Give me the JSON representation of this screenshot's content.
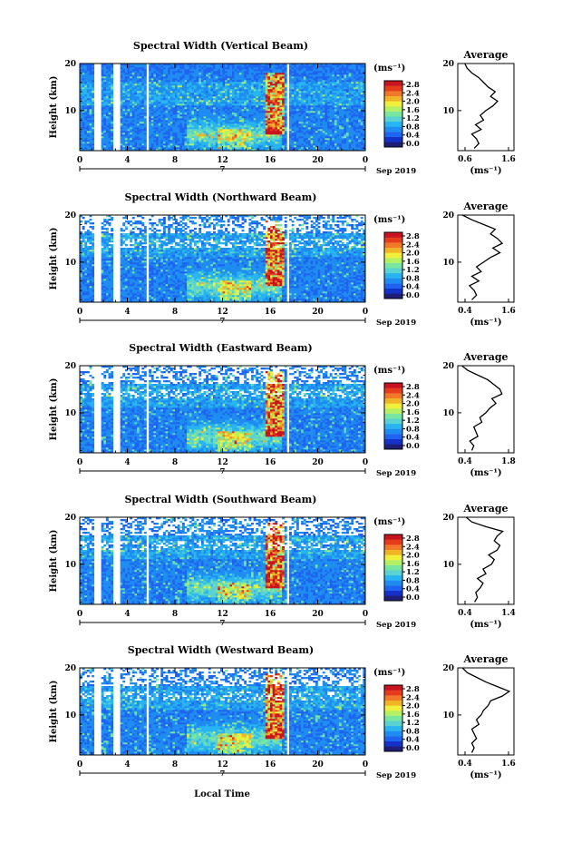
{
  "figure": {
    "xlabel": "Local Time",
    "date_label": "Sep 2019",
    "date_day": "7",
    "unit_label": "(ms⁻¹)",
    "average_title": "Average",
    "average_unit": "(ms⁻¹)"
  },
  "colorbar": {
    "ticks": [
      "0.0",
      "0.4",
      "0.8",
      "1.2",
      "1.6",
      "2.0",
      "2.4",
      "2.8"
    ],
    "colors": [
      "#1e1e78",
      "#1432c8",
      "#1e64f0",
      "#1e8cf0",
      "#28b4f0",
      "#5ad2d2",
      "#78e6a0",
      "#b4f064",
      "#f0f03c",
      "#f0b428",
      "#f07828",
      "#e63c1e",
      "#c8141e"
    ]
  },
  "chart_data": [
    {
      "type": "heatmap",
      "title": "Spectral Width (Vertical Beam)",
      "ylabel": "Height (km)",
      "xlim": [
        0,
        24
      ],
      "ylim": [
        1.5,
        20
      ],
      "x_ticks": [
        "0",
        "4",
        "8",
        "12",
        "16",
        "20",
        "0"
      ],
      "y_ticks": [
        "10",
        "20"
      ],
      "colorbar_range": [
        0.0,
        2.8
      ],
      "data_gaps_hours": [
        [
          1.2,
          1.7
        ],
        [
          2.9,
          3.4
        ],
        [
          5.6,
          5.8
        ],
        [
          17.5,
          17.7
        ]
      ],
      "average_profile": {
        "xlabel": "(ms⁻¹)",
        "x_ticks": [
          "0.6",
          "1.6"
        ],
        "xlim": [
          0.4,
          1.6
        ],
        "y_ticks": [
          "10",
          "20"
        ],
        "height": [
          2,
          3,
          4,
          5,
          6,
          7,
          8,
          9,
          10,
          11,
          12,
          13,
          14,
          15,
          16,
          17,
          18,
          19,
          20
        ],
        "width": [
          0.75,
          0.85,
          0.8,
          0.7,
          0.9,
          0.78,
          0.95,
          0.88,
          1.0,
          1.15,
          1.25,
          1.1,
          1.2,
          1.05,
          0.95,
          0.85,
          0.7,
          0.6,
          0.55
        ]
      }
    },
    {
      "type": "heatmap",
      "title": "Spectral Width (Northward Beam)",
      "ylabel": "Height (km)",
      "xlim": [
        0,
        24
      ],
      "ylim": [
        1.5,
        20
      ],
      "x_ticks": [
        "0",
        "4",
        "8",
        "12",
        "16",
        "20",
        "0"
      ],
      "y_ticks": [
        "10",
        "20"
      ],
      "colorbar_range": [
        0.0,
        2.8
      ],
      "data_gaps_hours": [
        [
          1.2,
          1.7
        ],
        [
          2.9,
          3.4
        ],
        [
          5.6,
          5.8
        ],
        [
          17.5,
          17.7
        ]
      ],
      "average_profile": {
        "xlabel": "(ms⁻¹)",
        "x_ticks": [
          "0.4",
          "1.6"
        ],
        "xlim": [
          0.4,
          1.6
        ],
        "y_ticks": [
          "10",
          "20"
        ],
        "height": [
          2,
          3,
          4,
          5,
          6,
          7,
          8,
          9,
          10,
          11,
          12,
          13,
          14,
          15,
          16,
          17,
          18,
          19,
          20
        ],
        "width": [
          0.7,
          0.8,
          0.75,
          0.65,
          0.85,
          0.7,
          0.9,
          0.8,
          0.95,
          1.1,
          1.3,
          1.15,
          1.35,
          1.25,
          1.1,
          1.2,
          0.95,
          0.7,
          0.5
        ]
      }
    },
    {
      "type": "heatmap",
      "title": "Spectral Width (Eastward Beam)",
      "ylabel": "Height (km)",
      "xlim": [
        0,
        24
      ],
      "ylim": [
        1.5,
        20
      ],
      "x_ticks": [
        "0",
        "4",
        "8",
        "12",
        "16",
        "20",
        "0"
      ],
      "y_ticks": [
        "10",
        "20"
      ],
      "colorbar_range": [
        0.0,
        2.8
      ],
      "data_gaps_hours": [
        [
          1.2,
          1.7
        ],
        [
          2.9,
          3.4
        ],
        [
          5.6,
          5.8
        ],
        [
          17.5,
          17.7
        ]
      ],
      "average_profile": {
        "xlabel": "(ms⁻¹)",
        "x_ticks": [
          "0.4",
          "1.8"
        ],
        "xlim": [
          0.4,
          1.8
        ],
        "y_ticks": [
          "10",
          "20"
        ],
        "height": [
          2,
          3,
          4,
          5,
          6,
          7,
          8,
          9,
          10,
          11,
          12,
          13,
          14,
          15,
          16,
          17,
          18,
          19,
          20
        ],
        "width": [
          0.75,
          0.8,
          0.7,
          0.9,
          0.85,
          0.8,
          1.0,
          0.95,
          1.1,
          1.2,
          1.35,
          1.25,
          1.5,
          1.45,
          1.3,
          1.15,
          0.9,
          0.65,
          0.5
        ]
      }
    },
    {
      "type": "heatmap",
      "title": "Spectral Width (Southward Beam)",
      "ylabel": "Height (km)",
      "xlim": [
        0,
        24
      ],
      "ylim": [
        1.5,
        20
      ],
      "x_ticks": [
        "0",
        "4",
        "8",
        "12",
        "16",
        "20",
        "0"
      ],
      "y_ticks": [
        "10",
        "20"
      ],
      "colorbar_range": [
        0.0,
        2.8
      ],
      "data_gaps_hours": [
        [
          1.2,
          1.7
        ],
        [
          2.9,
          3.4
        ],
        [
          5.6,
          5.8
        ],
        [
          17.5,
          17.7
        ]
      ],
      "average_profile": {
        "xlabel": "(ms⁻¹)",
        "x_ticks": [
          "0.4",
          "1.4"
        ],
        "xlim": [
          0.4,
          1.4
        ],
        "y_ticks": [
          "10",
          "20"
        ],
        "height": [
          2,
          3,
          4,
          5,
          6,
          7,
          8,
          9,
          10,
          11,
          12,
          13,
          14,
          15,
          16,
          17,
          18,
          19,
          20
        ],
        "width": [
          0.7,
          0.75,
          0.72,
          0.8,
          0.85,
          0.75,
          0.9,
          0.85,
          1.0,
          1.05,
          0.95,
          1.1,
          1.15,
          1.05,
          1.1,
          1.2,
          0.9,
          0.65,
          0.55
        ]
      }
    },
    {
      "type": "heatmap",
      "title": "Spectral Width (Westward Beam)",
      "ylabel": "Height (km)",
      "xlim": [
        0,
        24
      ],
      "ylim": [
        1.5,
        20
      ],
      "x_ticks": [
        "0",
        "4",
        "8",
        "12",
        "16",
        "20",
        "0"
      ],
      "y_ticks": [
        "10",
        "20"
      ],
      "colorbar_range": [
        0.0,
        2.8
      ],
      "data_gaps_hours": [
        [
          1.2,
          1.7
        ],
        [
          2.9,
          3.4
        ],
        [
          5.6,
          5.8
        ],
        [
          17.5,
          17.7
        ]
      ],
      "average_profile": {
        "xlabel": "(ms⁻¹)",
        "x_ticks": [
          "0.4",
          "1.6"
        ],
        "xlim": [
          0.4,
          1.6
        ],
        "y_ticks": [
          "10",
          "20"
        ],
        "height": [
          2,
          3,
          4,
          5,
          6,
          7,
          8,
          9,
          10,
          11,
          12,
          13,
          14,
          15,
          16,
          17,
          18,
          19,
          20
        ],
        "width": [
          0.7,
          0.75,
          0.7,
          0.8,
          0.75,
          0.7,
          0.85,
          0.8,
          0.9,
          0.95,
          1.05,
          1.1,
          1.35,
          1.5,
          1.25,
          1.0,
          0.8,
          0.6,
          0.5
        ]
      }
    }
  ]
}
